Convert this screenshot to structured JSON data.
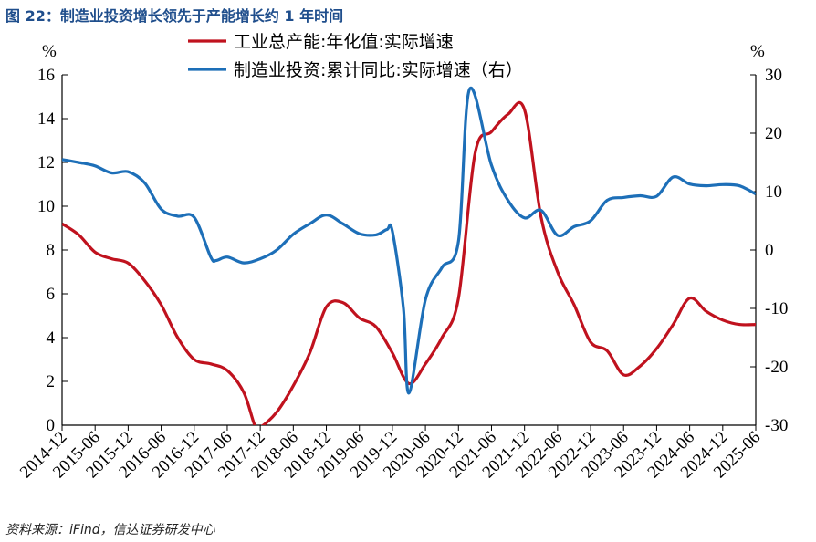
{
  "title": "图 22：制造业投资增长领先于产能增长约 1 年时间",
  "source": "资料来源：iFind，信达证券研发中心",
  "chart_data": {
    "type": "line",
    "left_unit": "%",
    "right_unit": "%",
    "y_left": {
      "min": 0,
      "max": 16,
      "ticks": [
        "0",
        "2",
        "4",
        "6",
        "8",
        "10",
        "12",
        "14",
        "16"
      ]
    },
    "y_right": {
      "min": -30,
      "max": 30,
      "ticks": [
        "-30",
        "-20",
        "-10",
        "0",
        "10",
        "20",
        "30"
      ]
    },
    "x_start": "2014-12",
    "x_end": "2025-06",
    "x_ticks": [
      "2014-12",
      "2015-06",
      "2015-12",
      "2016-06",
      "2016-12",
      "2017-06",
      "2017-12",
      "2018-06",
      "2018-12",
      "2019-06",
      "2019-12",
      "2020-06",
      "2020-12",
      "2021-06",
      "2021-12",
      "2022-06",
      "2022-12",
      "2023-06",
      "2023-12",
      "2024-06",
      "2024-12",
      "2025-06"
    ],
    "series": [
      {
        "name": "工业总产能:年化值:实际增速",
        "axis": "left",
        "color": "#c0121e",
        "points": [
          [
            "2014-12",
            9.2
          ],
          [
            "2015-03",
            8.7
          ],
          [
            "2015-06",
            7.9
          ],
          [
            "2015-09",
            7.6
          ],
          [
            "2015-12",
            7.4
          ],
          [
            "2016-03",
            6.6
          ],
          [
            "2016-06",
            5.5
          ],
          [
            "2016-09",
            4.0
          ],
          [
            "2016-12",
            3.0
          ],
          [
            "2017-03",
            2.8
          ],
          [
            "2017-06",
            2.5
          ],
          [
            "2017-09",
            1.5
          ],
          [
            "2017-11",
            0.0
          ],
          [
            "2017-12",
            -0.1
          ],
          [
            "2018-03",
            0.6
          ],
          [
            "2018-06",
            1.8
          ],
          [
            "2018-09",
            3.3
          ],
          [
            "2018-12",
            5.4
          ],
          [
            "2019-03",
            5.6
          ],
          [
            "2019-06",
            4.9
          ],
          [
            "2019-09",
            4.5
          ],
          [
            "2019-12",
            3.3
          ],
          [
            "2020-03",
            1.9
          ],
          [
            "2020-06",
            2.8
          ],
          [
            "2020-09",
            4.0
          ],
          [
            "2020-12",
            5.8
          ],
          [
            "2021-03",
            12.4
          ],
          [
            "2021-06",
            13.4
          ],
          [
            "2021-09",
            14.2
          ],
          [
            "2021-12",
            14.4
          ],
          [
            "2022-03",
            9.5
          ],
          [
            "2022-06",
            7.0
          ],
          [
            "2022-09",
            5.5
          ],
          [
            "2022-12",
            3.8
          ],
          [
            "2023-03",
            3.4
          ],
          [
            "2023-06",
            2.3
          ],
          [
            "2023-09",
            2.7
          ],
          [
            "2023-12",
            3.5
          ],
          [
            "2024-03",
            4.6
          ],
          [
            "2024-06",
            5.8
          ],
          [
            "2024-09",
            5.2
          ],
          [
            "2024-12",
            4.8
          ],
          [
            "2025-03",
            4.6
          ],
          [
            "2025-06",
            4.6
          ]
        ]
      },
      {
        "name": "制造业投资:累计同比:实际增速（右）",
        "axis": "right",
        "color": "#1d6fb8",
        "points": [
          [
            "2014-12",
            15.5
          ],
          [
            "2015-03",
            15.0
          ],
          [
            "2015-06",
            14.4
          ],
          [
            "2015-09",
            13.2
          ],
          [
            "2015-12",
            13.4
          ],
          [
            "2016-03",
            11.5
          ],
          [
            "2016-06",
            7.0
          ],
          [
            "2016-09",
            5.8
          ],
          [
            "2016-12",
            5.6
          ],
          [
            "2017-03",
            -1.2
          ],
          [
            "2017-04",
            -1.8
          ],
          [
            "2017-06",
            -1.2
          ],
          [
            "2017-09",
            -2.2
          ],
          [
            "2017-12",
            -1.5
          ],
          [
            "2018-03",
            0.0
          ],
          [
            "2018-06",
            2.7
          ],
          [
            "2018-09",
            4.5
          ],
          [
            "2018-12",
            6.0
          ],
          [
            "2019-03",
            4.5
          ],
          [
            "2019-06",
            2.8
          ],
          [
            "2019-09",
            2.6
          ],
          [
            "2019-11",
            3.5
          ],
          [
            "2019-12",
            3.2
          ],
          [
            "2020-02",
            -10.0
          ],
          [
            "2020-03",
            -24.5
          ],
          [
            "2020-06",
            -8.5
          ],
          [
            "2020-09",
            -3.0
          ],
          [
            "2020-12",
            1.5
          ],
          [
            "2021-02",
            27.5
          ],
          [
            "2021-06",
            14.5
          ],
          [
            "2021-09",
            8.5
          ],
          [
            "2021-12",
            5.5
          ],
          [
            "2022-03",
            6.8
          ],
          [
            "2022-06",
            2.5
          ],
          [
            "2022-09",
            4.0
          ],
          [
            "2022-12",
            5.0
          ],
          [
            "2023-03",
            8.5
          ],
          [
            "2023-06",
            9.0
          ],
          [
            "2023-09",
            9.3
          ],
          [
            "2023-12",
            9.2
          ],
          [
            "2024-03",
            12.5
          ],
          [
            "2024-06",
            11.3
          ],
          [
            "2024-09",
            11.0
          ],
          [
            "2024-12",
            11.2
          ],
          [
            "2025-03",
            11.0
          ],
          [
            "2025-06",
            9.6
          ]
        ]
      }
    ],
    "legend_position": "top-center"
  }
}
